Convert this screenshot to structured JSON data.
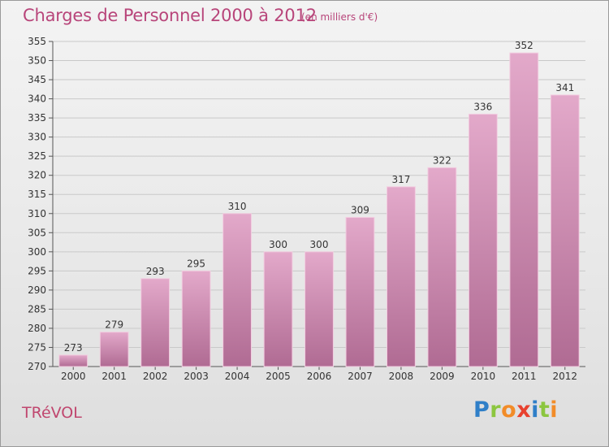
{
  "header": {
    "title": "Charges de Personnel 2000 à 2012",
    "subtitle": "(en milliers d'€)"
  },
  "footer": {
    "place": "TRéVOL",
    "logo_letters": [
      "P",
      "r",
      "o",
      "x",
      "i",
      "t",
      "i"
    ],
    "logo_colors": [
      "#2f7fc8",
      "#8cc63f",
      "#f28c28",
      "#e8412e",
      "#2f7fc8",
      "#8cc63f",
      "#f28c28"
    ]
  },
  "chart_data": {
    "type": "bar",
    "title": "Charges de Personnel 2000 à 2012",
    "subtitle": "(en milliers d'€)",
    "xlabel": "",
    "ylabel": "",
    "categories": [
      "2000",
      "2001",
      "2002",
      "2003",
      "2004",
      "2005",
      "2006",
      "2007",
      "2008",
      "2009",
      "2010",
      "2011",
      "2012"
    ],
    "values": [
      273,
      279,
      293,
      295,
      310,
      300,
      300,
      309,
      317,
      322,
      336,
      352,
      341
    ],
    "ylim": [
      270,
      355
    ],
    "yticks": [
      270,
      275,
      280,
      285,
      290,
      295,
      300,
      305,
      310,
      315,
      320,
      325,
      330,
      335,
      340,
      345,
      350,
      355
    ],
    "grid": true,
    "colors": {
      "bar_top": "#e3a9ca",
      "bar_bottom": "#b06b93",
      "bar_edge": "#f2cde0",
      "grid": "#c9c9c9",
      "axis": "#555555",
      "text": "#333333",
      "title": "#b8457a"
    }
  }
}
